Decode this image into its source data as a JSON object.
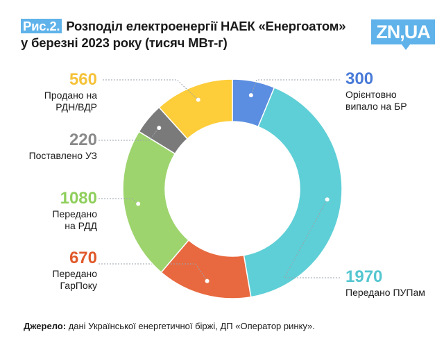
{
  "title": {
    "fig_label": "Рис.2.",
    "line1": "Розподіл електроенергії НАЕК «Енергоатом»",
    "line2": "у березні 2023 року (тисяч МВт-г)"
  },
  "logo": "ZN,UA",
  "source": {
    "label": "Джерело:",
    "text": " дані Української енергетичної біржі, ДП «Оператор ринку»."
  },
  "chart_data": {
    "type": "pie",
    "donut": true,
    "units": "тисяч МВт-г",
    "slices": [
      {
        "label": "Орієнтовно випало на БР",
        "line1": "Орієнтовно",
        "line2": "випало на БР",
        "value": 300,
        "color": "#5b8ee0",
        "text_color": "#4a7bd8"
      },
      {
        "label": "Передано ПУПам",
        "line1": "Передано ПУПам",
        "line2": "",
        "value": 1970,
        "color": "#5ecfd6",
        "text_color": "#55c6d0"
      },
      {
        "label": "Передано ГарПоку",
        "line1": "Передано",
        "line2": "ГарПоку",
        "value": 670,
        "color": "#e8693f",
        "text_color": "#e0592a"
      },
      {
        "label": "Передано на РДД",
        "line1": "Передано",
        "line2": "на РДД",
        "value": 1080,
        "color": "#9ed46e",
        "text_color": "#8fcf5c"
      },
      {
        "label": "Поставлено УЗ",
        "line1": "Поставлено УЗ",
        "line2": "",
        "value": 220,
        "color": "#7a7a7a",
        "text_color": "#8a8a8a"
      },
      {
        "label": "Продано на РДН/ВДР",
        "line1": "Продано на",
        "line2": "РДН/ВДР",
        "value": 560,
        "color": "#fdcd3a",
        "text_color": "#f5c23a"
      }
    ]
  }
}
